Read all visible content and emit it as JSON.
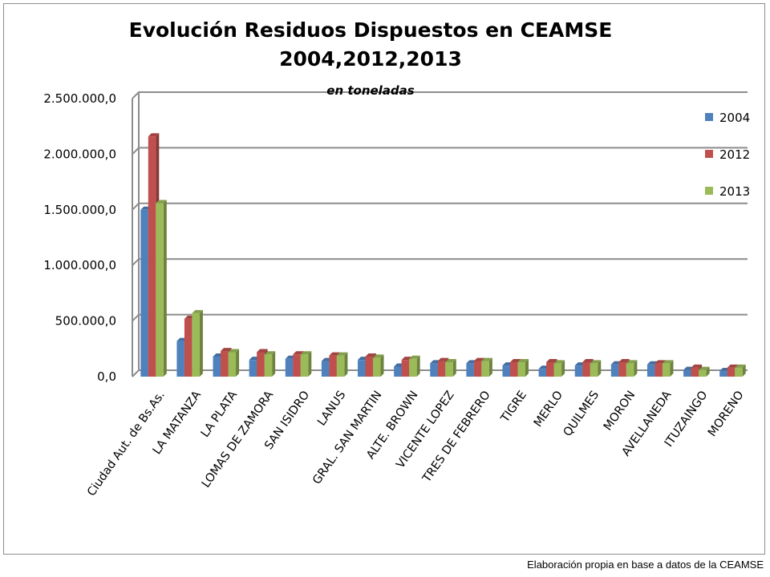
{
  "footer": "Elaboración propia en base a datos de la CEAMSE",
  "chart_data": {
    "type": "bar",
    "title": "Evolución Residuos Dispuestos en CEAMSE",
    "subtitle": "2004,2012,2013",
    "ylabel": "en toneladas",
    "ylim": [
      0,
      2500000
    ],
    "yticks": [
      "0,0",
      "500.000,0",
      "1.000.000,0",
      "1.500.000,0",
      "2.000.000,0",
      "2.500.000,0"
    ],
    "grid": true,
    "legend_position": "right",
    "categories": [
      "Ciudad Aut. de Bs.As.",
      "LA MATANZA",
      "LA PLATA",
      "LOMAS DE ZAMORA",
      "SAN ISIDRO",
      "LANUS",
      "GRAL. SAN MARTIN",
      "ALTE. BROWN",
      "VICENTE LOPEZ",
      "TRES DE FEBRERO",
      "TIGRE",
      "MERLO",
      "QUILMES",
      "MORON",
      "AVELLANEDA",
      "ITUZAINGO",
      "MORENO"
    ],
    "series": [
      {
        "name": "2004",
        "color": "#4f81bd",
        "values": [
          1500000,
          320000,
          180000,
          150000,
          160000,
          140000,
          150000,
          90000,
          120000,
          120000,
          100000,
          70000,
          100000,
          110000,
          110000,
          60000,
          50000
        ]
      },
      {
        "name": "2012",
        "color": "#c0504d",
        "values": [
          2160000,
          520000,
          230000,
          220000,
          200000,
          190000,
          180000,
          150000,
          140000,
          140000,
          130000,
          130000,
          130000,
          130000,
          120000,
          80000,
          80000
        ]
      },
      {
        "name": "2013",
        "color": "#9bbb59",
        "values": [
          1560000,
          570000,
          220000,
          200000,
          200000,
          190000,
          170000,
          160000,
          130000,
          140000,
          130000,
          120000,
          120000,
          120000,
          120000,
          60000,
          80000
        ]
      }
    ]
  }
}
